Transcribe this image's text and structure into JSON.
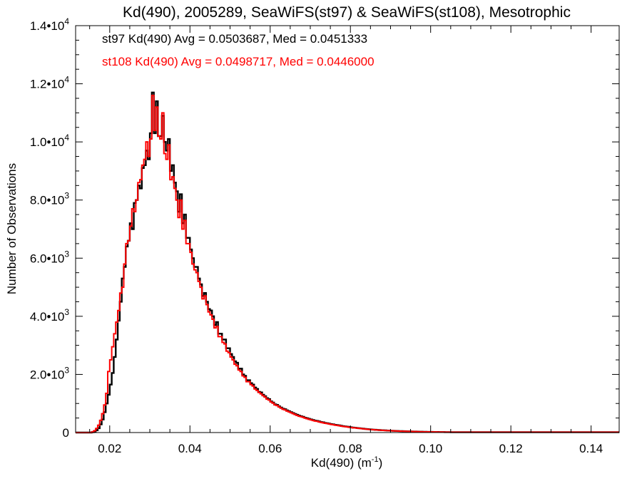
{
  "chart_data": {
    "type": "histogram",
    "title": "Kd(490), 2005289, SeaWiFS(st97) & SeaWiFS(st108), Mesotrophic",
    "xlabel": "Kd(490) (m",
    "xlabel_sup": "-1",
    "xlabel_close": ")",
    "ylabel": "Number of Observations",
    "xlim": [
      0.0115,
      0.147
    ],
    "ylim": [
      0,
      14000
    ],
    "xticks": [
      {
        "value": 0.02,
        "label": "0.02"
      },
      {
        "value": 0.04,
        "label": "0.04"
      },
      {
        "value": 0.06,
        "label": "0.06"
      },
      {
        "value": 0.08,
        "label": "0.08"
      },
      {
        "value": 0.1,
        "label": "0.10"
      },
      {
        "value": 0.12,
        "label": "0.12"
      },
      {
        "value": 0.14,
        "label": "0.14"
      }
    ],
    "yticks": [
      {
        "value": 0,
        "base": "0",
        "exp": ""
      },
      {
        "value": 2000,
        "base": "2.0•10",
        "exp": "3"
      },
      {
        "value": 4000,
        "base": "4.0•10",
        "exp": "3"
      },
      {
        "value": 6000,
        "base": "6.0•10",
        "exp": "3"
      },
      {
        "value": 8000,
        "base": "8.0•10",
        "exp": "3"
      },
      {
        "value": 10000,
        "base": "1.0•10",
        "exp": "4"
      },
      {
        "value": 12000,
        "base": "1.2•10",
        "exp": "4"
      },
      {
        "value": 14000,
        "base": "1.4•10",
        "exp": "4"
      }
    ],
    "bin_start": 0.0115,
    "bin_width": 0.0005,
    "annotations": [
      {
        "text": "st97 Kd(490) Avg = 0.0503687, Med = 0.0451333",
        "color": "#000000"
      },
      {
        "text": "st108 Kd(490) Avg = 0.0498717, Med = 0.0446000",
        "color": "#ff0000"
      }
    ],
    "series": [
      {
        "color": "#000000",
        "values": [
          0,
          0,
          0,
          0,
          0,
          0,
          0,
          0,
          10,
          30,
          80,
          150,
          280,
          450,
          700,
          1000,
          1300,
          1650,
          2050,
          2600,
          3200,
          3850,
          4500,
          5300,
          5700,
          6400,
          6600,
          7200,
          7000,
          7900,
          8000,
          8500,
          8400,
          9100,
          9200,
          9700,
          9400,
          10300,
          11700,
          10300,
          11400,
          10200,
          10200,
          10900,
          10000,
          9700,
          10100,
          9000,
          9200,
          8600,
          8300,
          7600,
          8200,
          7200,
          7500,
          6700,
          6700,
          6300,
          6000,
          5700,
          5700,
          5300,
          5100,
          4700,
          4800,
          4500,
          4250,
          4200,
          4000,
          3700,
          3800,
          3400,
          3400,
          3200,
          3200,
          2900,
          2900,
          2700,
          2600,
          2450,
          2400,
          2200,
          2200,
          2000,
          1950,
          1800,
          1800,
          1700,
          1650,
          1550,
          1500,
          1400,
          1380,
          1300,
          1250,
          1180,
          1150,
          1070,
          1030,
          970,
          950,
          900,
          860,
          820,
          800,
          760,
          730,
          700,
          670,
          640,
          610,
          580,
          560,
          540,
          510,
          490,
          470,
          450,
          430,
          410,
          400,
          380,
          360,
          350,
          330,
          320,
          305,
          290,
          280,
          265,
          255,
          245,
          230,
          220,
          210,
          200,
          190,
          180,
          170,
          165,
          155,
          148,
          140,
          133,
          125,
          118,
          112,
          106,
          100,
          95,
          90,
          86,
          82,
          78,
          74,
          70,
          66,
          63,
          60,
          57,
          54,
          51,
          49,
          46,
          44,
          42,
          40,
          38,
          36,
          34,
          32,
          30,
          28,
          27,
          25,
          24,
          23,
          22,
          21,
          20,
          19,
          18,
          17,
          16,
          15,
          14,
          13,
          12
        ]
      },
      {
        "color": "#ff0000",
        "values": [
          0,
          0,
          0,
          0,
          0,
          0,
          0,
          0,
          20,
          60,
          140,
          250,
          420,
          650,
          950,
          1350,
          2100,
          2500,
          2950,
          3400,
          3800,
          4200,
          4800,
          5000,
          5800,
          6500,
          6600,
          7100,
          7700,
          7600,
          8000,
          8600,
          8700,
          9200,
          9400,
          10000,
          9500,
          10100,
          11600,
          10400,
          11200,
          10200,
          10100,
          11000,
          9600,
          9400,
          9900,
          8700,
          8800,
          8400,
          8000,
          7400,
          8000,
          7000,
          7300,
          6500,
          6500,
          6200,
          5800,
          5600,
          5500,
          5200,
          5000,
          4600,
          4700,
          4400,
          4150,
          4050,
          3900,
          3600,
          3650,
          3300,
          3300,
          3100,
          3050,
          2800,
          2750,
          2600,
          2500,
          2350,
          2300,
          2150,
          2100,
          1950,
          1900,
          1750,
          1750,
          1650,
          1600,
          1500,
          1450,
          1380,
          1330,
          1270,
          1220,
          1150,
          1120,
          1050,
          1010,
          950,
          930,
          880,
          840,
          800,
          780,
          740,
          710,
          680,
          650,
          620,
          590,
          560,
          545,
          525,
          495,
          475,
          455,
          435,
          415,
          395,
          385,
          365,
          350,
          335,
          320,
          310,
          295,
          280,
          270,
          255,
          245,
          235,
          222,
          212,
          202,
          192,
          182,
          172,
          163,
          158,
          150,
          143,
          135,
          128,
          120,
          114,
          108,
          102,
          97,
          92,
          87,
          83,
          79,
          75,
          71,
          68,
          64,
          61,
          58,
          55,
          52,
          50,
          47,
          45,
          43,
          41,
          39,
          37,
          35,
          33,
          31,
          29,
          28,
          26,
          25,
          24,
          23,
          22,
          21,
          20,
          19,
          18,
          17,
          16,
          15,
          14,
          13,
          12
        ]
      }
    ]
  }
}
